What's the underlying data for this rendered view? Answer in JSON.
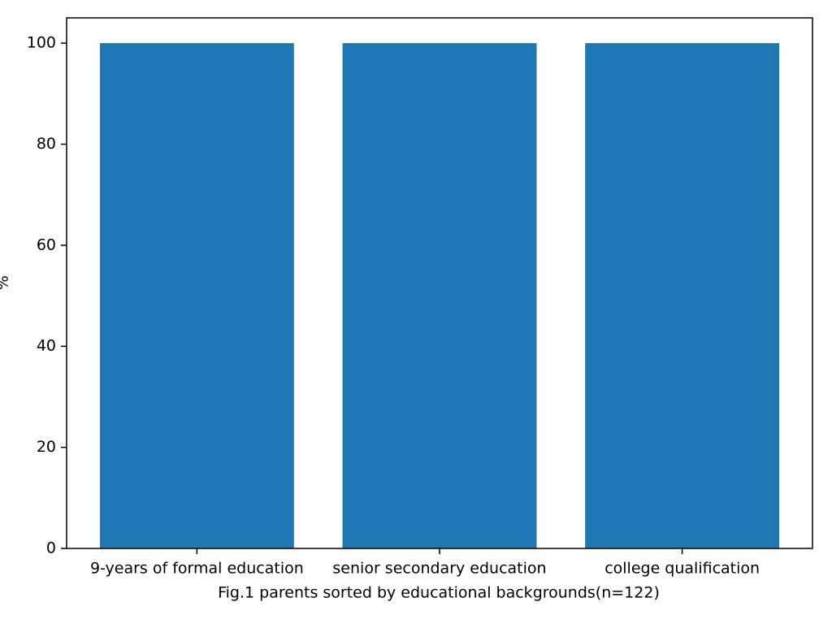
{
  "chart_data": {
    "type": "bar",
    "xlabel": "Fig.1 parents sorted by educational backgrounds(n=122)",
    "ylabel": "%",
    "categories": [
      "9-years of formal education",
      "senior secondary education",
      "college qualification"
    ],
    "values": [
      100,
      100,
      100
    ],
    "color": "#1f77b4",
    "ylim": [
      0,
      105
    ],
    "yticks": [
      0,
      20,
      40,
      60,
      80,
      100
    ],
    "grid": false
  }
}
